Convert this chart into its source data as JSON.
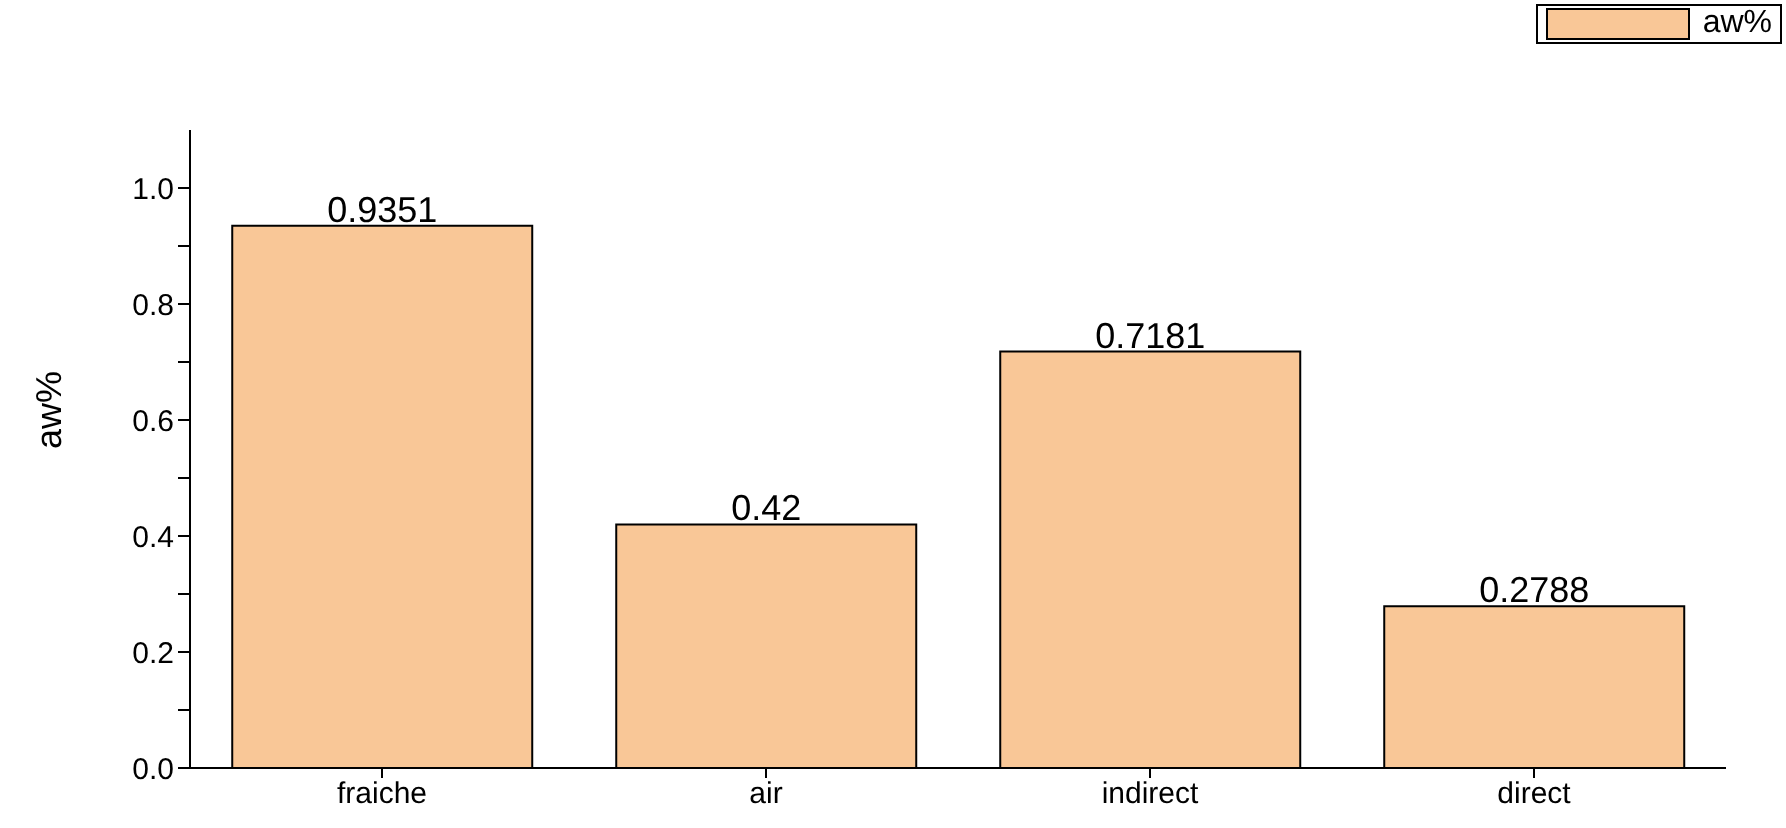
{
  "chart_data": {
    "type": "bar",
    "ylabel": "aw%",
    "categories": [
      "fraiche",
      "air",
      "indirect",
      "direct"
    ],
    "series": [
      {
        "name": "aw%",
        "color": "#f9c797",
        "values": [
          0.9351,
          0.42,
          0.7181,
          0.2788
        ]
      }
    ],
    "ylim": [
      0,
      1.1
    ],
    "yticks": [
      {
        "value": 0,
        "label": "0.0"
      },
      {
        "value": 0.1,
        "label": null
      },
      {
        "value": 0.2,
        "label": "0.2"
      },
      {
        "value": 0.3,
        "label": null
      },
      {
        "value": 0.4,
        "label": "0.4"
      },
      {
        "value": 0.5,
        "label": null
      },
      {
        "value": 0.6,
        "label": "0.6"
      },
      {
        "value": 0.7,
        "label": null
      },
      {
        "value": 0.8,
        "label": "0.8"
      },
      {
        "value": 0.9,
        "label": null
      },
      {
        "value": 1,
        "label": "1.0"
      }
    ],
    "data_labels": true,
    "legend": "top right"
  }
}
